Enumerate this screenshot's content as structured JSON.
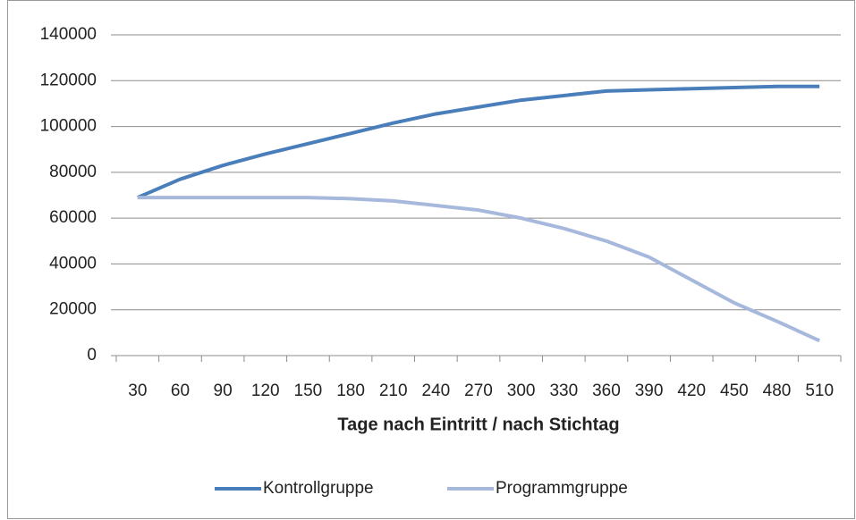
{
  "chart_data": {
    "type": "line",
    "x_label": "Tage nach Eintritt / nach Stichtag",
    "categories": [
      "30",
      "60",
      "90",
      "120",
      "150",
      "180",
      "210",
      "240",
      "270",
      "300",
      "330",
      "360",
      "390",
      "420",
      "450",
      "480",
      "510"
    ],
    "series": [
      {
        "name": "Kontrollgruppe",
        "color": "#4a7ebb",
        "values": [
          69000,
          77000,
          83000,
          88000,
          92500,
          97000,
          101500,
          105500,
          108500,
          111500,
          113500,
          115500,
          116000,
          116500,
          117000,
          117500,
          117500
        ]
      },
      {
        "name": "Programmgruppe",
        "color": "#a6b9dc",
        "values": [
          69000,
          69000,
          69000,
          69000,
          69000,
          68500,
          67500,
          65500,
          63500,
          60000,
          55500,
          50000,
          43000,
          33000,
          23000,
          15000,
          6500
        ]
      }
    ],
    "ylim": [
      0,
      140000
    ],
    "yticks": [
      0,
      20000,
      40000,
      60000,
      80000,
      100000,
      120000,
      140000
    ],
    "grid": true,
    "legend": "bottom"
  }
}
